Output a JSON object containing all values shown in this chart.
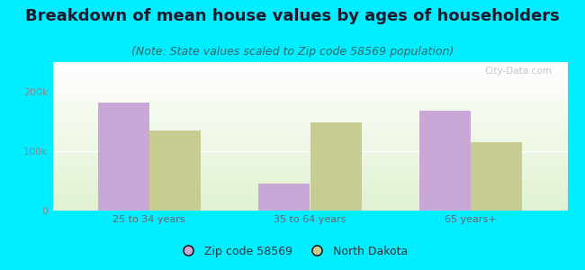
{
  "title": "Breakdown of mean house values by ages of householders",
  "subtitle": "(Note: State values scaled to Zip code 58569 population)",
  "categories": [
    "25 to 34 years",
    "35 to 64 years",
    "65 years+"
  ],
  "zip_values": [
    182000,
    45000,
    168000
  ],
  "state_values": [
    135000,
    148000,
    115000
  ],
  "zip_color": "#c9a8d8",
  "state_color": "#c8cc90",
  "ylim": [
    0,
    250000
  ],
  "ytick_labels": [
    "0",
    "100k",
    "200k"
  ],
  "ytick_values": [
    0,
    100000,
    200000
  ],
  "background_outer": "#00eeff",
  "bar_width": 0.32,
  "legend_zip_label": "Zip code 58569",
  "legend_state_label": "North Dakota",
  "title_fontsize": 13,
  "subtitle_fontsize": 9,
  "watermark": "City-Data.com"
}
